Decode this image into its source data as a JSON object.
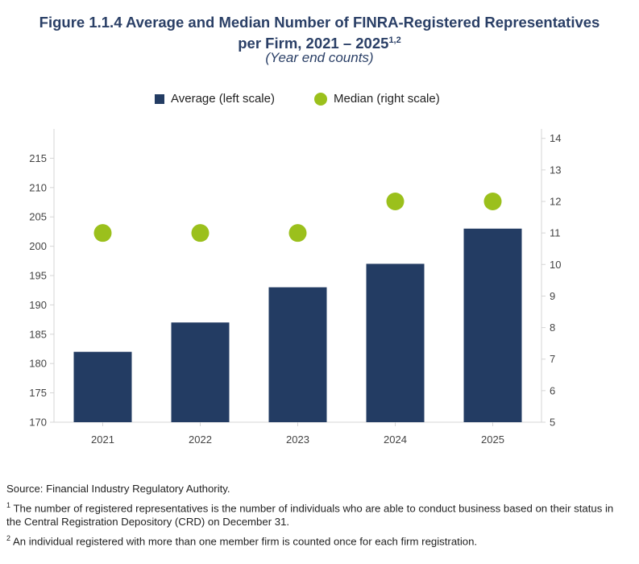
{
  "title": "Figure 1.1.4 Average and Median Number of FINRA-Registered Representatives",
  "title_line2": "per Firm, 2021 – 2025",
  "title_sup": "1,2",
  "subtitle": "(Year end counts)",
  "legend": {
    "average": "Average (left scale)",
    "median": "Median (right scale)"
  },
  "colors": {
    "bar": "#233c63",
    "dot": "#9bc01c",
    "axis": "#d5d5d5",
    "title": "#2a3f66"
  },
  "chart_data": {
    "type": "bar",
    "categories": [
      "2021",
      "2022",
      "2023",
      "2024",
      "2025"
    ],
    "series": [
      {
        "name": "Average (left scale)",
        "type": "bar",
        "axis": "left",
        "values": [
          182,
          187,
          193,
          197,
          203
        ]
      },
      {
        "name": "Median (right scale)",
        "type": "scatter",
        "axis": "right",
        "values": [
          11,
          11,
          11,
          12,
          12
        ]
      }
    ],
    "left_axis": {
      "min": 170,
      "max": 220,
      "ticks": [
        170,
        175,
        180,
        185,
        190,
        195,
        200,
        205,
        210,
        215
      ]
    },
    "right_axis": {
      "min": 5,
      "max": 14.3,
      "ticks": [
        5,
        6,
        7,
        8,
        9,
        10,
        11,
        12,
        13,
        14
      ]
    },
    "legend_position": "top"
  },
  "notes": {
    "source": "Source: Financial Industry Regulatory Authority.",
    "fn1_mark": "1",
    "fn1": "The number of registered representatives is the number of individuals who are able to conduct business based on their status in the Central Registration Depository (CRD) on December 31.",
    "fn2_mark": "2",
    "fn2": "An individual registered with more than one member firm is counted once for each firm registration."
  }
}
